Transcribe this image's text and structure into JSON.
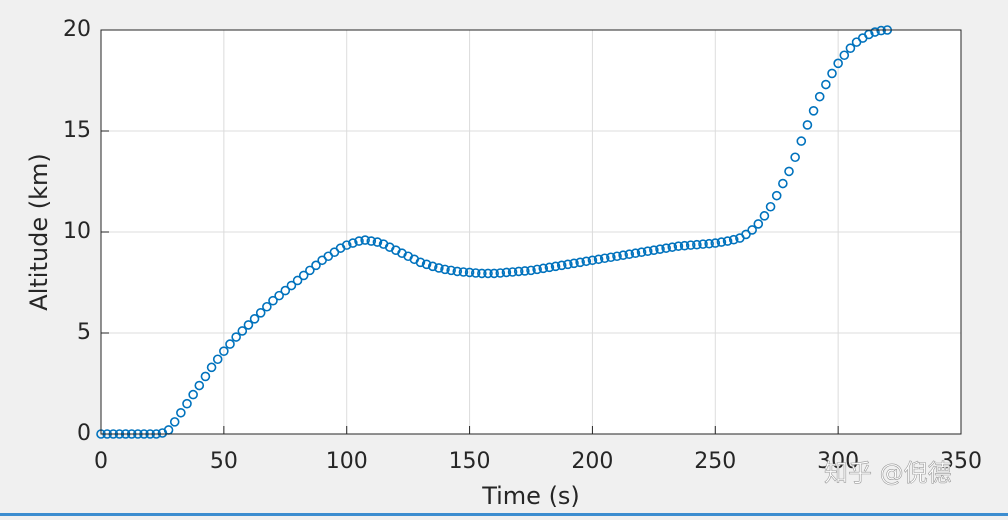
{
  "chart_data": {
    "type": "scatter",
    "x_label": "Time (s)",
    "y_label": "Altitude (km)",
    "xlim": [
      0,
      350
    ],
    "xticks": [
      0,
      50,
      100,
      150,
      200,
      250,
      300,
      350
    ],
    "ylim": [
      0,
      20
    ],
    "yticks": [
      0,
      5,
      10,
      15,
      20
    ],
    "grid": true,
    "series": [
      {
        "name": "Altitude",
        "color": "#0072bd",
        "x": [
          0,
          2.5,
          5,
          7.5,
          10,
          12.5,
          15,
          17.5,
          20,
          22.5,
          25,
          27.5,
          30,
          32.5,
          35,
          37.5,
          40,
          42.5,
          45,
          47.5,
          50,
          52.5,
          55,
          57.5,
          60,
          62.5,
          65,
          67.5,
          70,
          72.5,
          75,
          77.5,
          80,
          82.5,
          85,
          87.5,
          90,
          92.5,
          95,
          97.5,
          100,
          102.5,
          105,
          107.5,
          110,
          112.5,
          115,
          117.5,
          120,
          122.5,
          125,
          127.5,
          130,
          132.5,
          135,
          137.5,
          140,
          142.5,
          145,
          147.5,
          150,
          152.5,
          155,
          157.5,
          160,
          162.5,
          165,
          167.5,
          170,
          172.5,
          175,
          177.5,
          180,
          182.5,
          185,
          187.5,
          190,
          192.5,
          195,
          197.5,
          200,
          202.5,
          205,
          207.5,
          210,
          212.5,
          215,
          217.5,
          220,
          222.5,
          225,
          227.5,
          230,
          232.5,
          235,
          237.5,
          240,
          242.5,
          245,
          247.5,
          250,
          252.5,
          255,
          257.5,
          260,
          262.5,
          265,
          267.5,
          270,
          272.5,
          275,
          277.5,
          280,
          282.5,
          285,
          287.5,
          290,
          292.5,
          295,
          297.5,
          300,
          302.5,
          305,
          307.5,
          310,
          312.5,
          315,
          317.5,
          320
        ],
        "values": [
          0,
          0,
          0,
          0,
          0,
          0,
          0,
          0,
          0,
          0,
          0.05,
          0.2,
          0.6,
          1.05,
          1.5,
          1.95,
          2.4,
          2.85,
          3.3,
          3.7,
          4.1,
          4.45,
          4.8,
          5.1,
          5.4,
          5.7,
          6.0,
          6.3,
          6.6,
          6.85,
          7.1,
          7.35,
          7.6,
          7.85,
          8.1,
          8.35,
          8.6,
          8.8,
          9.0,
          9.2,
          9.35,
          9.45,
          9.55,
          9.6,
          9.55,
          9.5,
          9.4,
          9.25,
          9.1,
          8.95,
          8.8,
          8.65,
          8.5,
          8.4,
          8.3,
          8.22,
          8.15,
          8.1,
          8.05,
          8.02,
          8.0,
          7.97,
          7.95,
          7.95,
          7.95,
          7.97,
          8.0,
          8.02,
          8.05,
          8.07,
          8.1,
          8.15,
          8.2,
          8.25,
          8.3,
          8.35,
          8.4,
          8.45,
          8.5,
          8.55,
          8.6,
          8.65,
          8.7,
          8.75,
          8.8,
          8.85,
          8.9,
          8.95,
          9.0,
          9.05,
          9.1,
          9.15,
          9.2,
          9.25,
          9.3,
          9.32,
          9.35,
          9.37,
          9.4,
          9.42,
          9.45,
          9.5,
          9.55,
          9.62,
          9.7,
          9.88,
          10.1,
          10.4,
          10.8,
          11.25,
          11.8,
          12.4,
          13.0,
          13.7,
          14.5,
          15.3,
          16.0,
          16.7,
          17.3,
          17.85,
          18.35,
          18.75,
          19.1,
          19.4,
          19.6,
          19.78,
          19.9,
          19.97,
          20.0
        ]
      }
    ]
  },
  "watermark": "知乎 @倪德"
}
